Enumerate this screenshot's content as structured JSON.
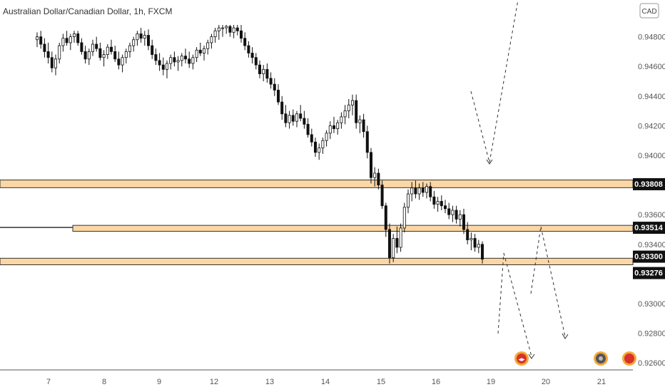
{
  "symbol_title": "Australian Dollar/Canadian Dollar, 1h, FXCM",
  "currency_badge": "CAD",
  "chart_data": {
    "type": "candlestick",
    "y_ticks": [
      "0.94800",
      "0.94600",
      "0.94400",
      "0.94200",
      "0.94000",
      "0.93600",
      "0.93400",
      "0.93000",
      "0.92800",
      "0.92600"
    ],
    "x_ticks": [
      "7",
      "8",
      "9",
      "12",
      "13",
      "14",
      "15",
      "16",
      "19",
      "20",
      "21"
    ],
    "price_levels": [
      {
        "label": "0.93808",
        "value": 0.93808
      },
      {
        "label": "0.93514",
        "value": 0.93514
      },
      {
        "label": "0.93300",
        "value": 0.933
      },
      {
        "label": "0.93276",
        "value": 0.93276
      }
    ],
    "zones": [
      {
        "from": 0.93782,
        "to": 0.93834
      },
      {
        "from": 0.93488,
        "to": 0.93528
      },
      {
        "from": 0.93262,
        "to": 0.93306
      }
    ],
    "candles": [
      [
        0.9478,
        0.9483,
        0.9473,
        0.948
      ],
      [
        0.948,
        0.9484,
        0.9472,
        0.9475
      ],
      [
        0.9475,
        0.9479,
        0.9466,
        0.947
      ],
      [
        0.947,
        0.9476,
        0.9462,
        0.9466
      ],
      [
        0.9466,
        0.947,
        0.9456,
        0.9459
      ],
      [
        0.9459,
        0.9468,
        0.9454,
        0.9465
      ],
      [
        0.9465,
        0.9476,
        0.9462,
        0.9474
      ],
      [
        0.9474,
        0.9482,
        0.947,
        0.9479
      ],
      [
        0.9479,
        0.9484,
        0.9474,
        0.9476
      ],
      [
        0.9476,
        0.9482,
        0.9471,
        0.948
      ],
      [
        0.948,
        0.9484,
        0.9476,
        0.9482
      ],
      [
        0.9482,
        0.9484,
        0.9474,
        0.9476
      ],
      [
        0.9476,
        0.9479,
        0.9468,
        0.947
      ],
      [
        0.947,
        0.9474,
        0.9462,
        0.9465
      ],
      [
        0.9465,
        0.9472,
        0.9461,
        0.947
      ],
      [
        0.947,
        0.9478,
        0.9467,
        0.9475
      ],
      [
        0.9475,
        0.948,
        0.947,
        0.9472
      ],
      [
        0.9472,
        0.9476,
        0.9464,
        0.9466
      ],
      [
        0.9466,
        0.9471,
        0.946,
        0.9468
      ],
      [
        0.9468,
        0.9475,
        0.9465,
        0.9473
      ],
      [
        0.9473,
        0.9478,
        0.9468,
        0.947
      ],
      [
        0.947,
        0.9474,
        0.9463,
        0.9465
      ],
      [
        0.9465,
        0.947,
        0.9458,
        0.9461
      ],
      [
        0.9461,
        0.9468,
        0.9456,
        0.9466
      ],
      [
        0.9466,
        0.9472,
        0.9462,
        0.947
      ],
      [
        0.947,
        0.9476,
        0.9466,
        0.9474
      ],
      [
        0.9474,
        0.948,
        0.947,
        0.9478
      ],
      [
        0.9478,
        0.9484,
        0.9474,
        0.9482
      ],
      [
        0.9482,
        0.9486,
        0.9476,
        0.9479
      ],
      [
        0.9479,
        0.9484,
        0.9474,
        0.9481
      ],
      [
        0.9481,
        0.9485,
        0.9471,
        0.9474
      ],
      [
        0.9474,
        0.9478,
        0.9465,
        0.9468
      ],
      [
        0.9468,
        0.9472,
        0.9461,
        0.9464
      ],
      [
        0.9464,
        0.9469,
        0.9457,
        0.9461
      ],
      [
        0.9461,
        0.9466,
        0.9454,
        0.9458
      ],
      [
        0.9458,
        0.9464,
        0.9452,
        0.9462
      ],
      [
        0.9462,
        0.9468,
        0.9458,
        0.9466
      ],
      [
        0.9466,
        0.947,
        0.946,
        0.9463
      ],
      [
        0.9463,
        0.9467,
        0.9457,
        0.9464
      ],
      [
        0.9464,
        0.9469,
        0.946,
        0.9467
      ],
      [
        0.9467,
        0.9472,
        0.9462,
        0.9465
      ],
      [
        0.9465,
        0.947,
        0.9459,
        0.9462
      ],
      [
        0.9462,
        0.9468,
        0.9458,
        0.9466
      ],
      [
        0.9466,
        0.9473,
        0.9463,
        0.9471
      ],
      [
        0.9471,
        0.9476,
        0.9467,
        0.9469
      ],
      [
        0.9469,
        0.9474,
        0.9464,
        0.9472
      ],
      [
        0.9472,
        0.9478,
        0.9468,
        0.9476
      ],
      [
        0.9476,
        0.9482,
        0.9472,
        0.948
      ],
      [
        0.948,
        0.9486,
        0.9476,
        0.9484
      ],
      [
        0.9484,
        0.9488,
        0.9478,
        0.9486
      ],
      [
        0.9486,
        0.9488,
        0.948,
        0.9486
      ],
      [
        0.9486,
        0.9488,
        0.9482,
        0.9487
      ],
      [
        0.9487,
        0.9488,
        0.948,
        0.9483
      ],
      [
        0.9483,
        0.9488,
        0.9479,
        0.9486
      ],
      [
        0.9486,
        0.9488,
        0.9481,
        0.9484
      ],
      [
        0.9484,
        0.9488,
        0.9476,
        0.9479
      ],
      [
        0.9479,
        0.9483,
        0.9471,
        0.9474
      ],
      [
        0.9474,
        0.9477,
        0.9466,
        0.9469
      ],
      [
        0.9469,
        0.9473,
        0.9462,
        0.9466
      ],
      [
        0.9466,
        0.9469,
        0.9458,
        0.9461
      ],
      [
        0.9461,
        0.9464,
        0.9452,
        0.9455
      ],
      [
        0.9455,
        0.9461,
        0.945,
        0.9458
      ],
      [
        0.9458,
        0.9462,
        0.9449,
        0.9452
      ],
      [
        0.9452,
        0.9456,
        0.9445,
        0.9448
      ],
      [
        0.9448,
        0.9452,
        0.944,
        0.9444
      ],
      [
        0.9444,
        0.9448,
        0.9434,
        0.9436
      ],
      [
        0.9436,
        0.944,
        0.9424,
        0.9428
      ],
      [
        0.9428,
        0.9434,
        0.9419,
        0.9422
      ],
      [
        0.9422,
        0.943,
        0.9418,
        0.9427
      ],
      [
        0.9427,
        0.9431,
        0.942,
        0.9423
      ],
      [
        0.9423,
        0.943,
        0.9419,
        0.9428
      ],
      [
        0.9428,
        0.9434,
        0.9423,
        0.9425
      ],
      [
        0.9425,
        0.943,
        0.9418,
        0.9421
      ],
      [
        0.9421,
        0.9425,
        0.9412,
        0.9414
      ],
      [
        0.9414,
        0.9418,
        0.9406,
        0.9409
      ],
      [
        0.9409,
        0.9412,
        0.9399,
        0.9402
      ],
      [
        0.9402,
        0.9408,
        0.9397,
        0.9405
      ],
      [
        0.9405,
        0.9412,
        0.9401,
        0.941
      ],
      [
        0.941,
        0.9417,
        0.9406,
        0.9415
      ],
      [
        0.9415,
        0.9423,
        0.9411,
        0.942
      ],
      [
        0.942,
        0.9426,
        0.9415,
        0.9418
      ],
      [
        0.9418,
        0.9424,
        0.9414,
        0.9422
      ],
      [
        0.9422,
        0.9429,
        0.9418,
        0.9426
      ],
      [
        0.9426,
        0.9434,
        0.9421,
        0.943
      ],
      [
        0.943,
        0.9438,
        0.9425,
        0.9434
      ],
      [
        0.9434,
        0.9441,
        0.9427,
        0.9437
      ],
      [
        0.9437,
        0.9441,
        0.9418,
        0.9422
      ],
      [
        0.9422,
        0.9427,
        0.9415,
        0.9424
      ],
      [
        0.9424,
        0.9428,
        0.9412,
        0.9416
      ],
      [
        0.9416,
        0.942,
        0.9398,
        0.9402
      ],
      [
        0.9402,
        0.9405,
        0.9381,
        0.9385
      ],
      [
        0.9385,
        0.9392,
        0.9379,
        0.9388
      ],
      [
        0.9388,
        0.9391,
        0.9377,
        0.938
      ],
      [
        0.938,
        0.9383,
        0.9364,
        0.9366
      ],
      [
        0.9366,
        0.9368,
        0.9345,
        0.935
      ],
      [
        0.935,
        0.9354,
        0.9327,
        0.9331
      ],
      [
        0.9331,
        0.9347,
        0.9328,
        0.9344
      ],
      [
        0.9344,
        0.9352,
        0.9334,
        0.9338
      ],
      [
        0.9338,
        0.9354,
        0.9335,
        0.9351
      ],
      [
        0.9351,
        0.9368,
        0.9348,
        0.9365
      ],
      [
        0.9365,
        0.9377,
        0.9361,
        0.9374
      ],
      [
        0.9374,
        0.9382,
        0.9369,
        0.9378
      ],
      [
        0.9378,
        0.9383,
        0.9371,
        0.9374
      ],
      [
        0.9374,
        0.9381,
        0.937,
        0.9378
      ],
      [
        0.9378,
        0.9382,
        0.9372,
        0.9375
      ],
      [
        0.9375,
        0.9381,
        0.9371,
        0.9379
      ],
      [
        0.9379,
        0.9382,
        0.9369,
        0.9372
      ],
      [
        0.9372,
        0.9376,
        0.9364,
        0.9367
      ],
      [
        0.9367,
        0.9372,
        0.9362,
        0.9369
      ],
      [
        0.9369,
        0.9373,
        0.9363,
        0.9366
      ],
      [
        0.9366,
        0.937,
        0.9361,
        0.9364
      ],
      [
        0.9364,
        0.9368,
        0.9357,
        0.936
      ],
      [
        0.936,
        0.9366,
        0.9355,
        0.9363
      ],
      [
        0.9363,
        0.9366,
        0.9354,
        0.9357
      ],
      [
        0.9357,
        0.9363,
        0.9352,
        0.936
      ],
      [
        0.936,
        0.9364,
        0.9347,
        0.935
      ],
      [
        0.935,
        0.9355,
        0.934,
        0.9343
      ],
      [
        0.9343,
        0.9348,
        0.9336,
        0.9344
      ],
      [
        0.9344,
        0.9347,
        0.9335,
        0.9338
      ],
      [
        0.9338,
        0.9343,
        0.9334,
        0.934
      ],
      [
        0.934,
        0.9342,
        0.9327,
        0.933
      ]
    ]
  }
}
